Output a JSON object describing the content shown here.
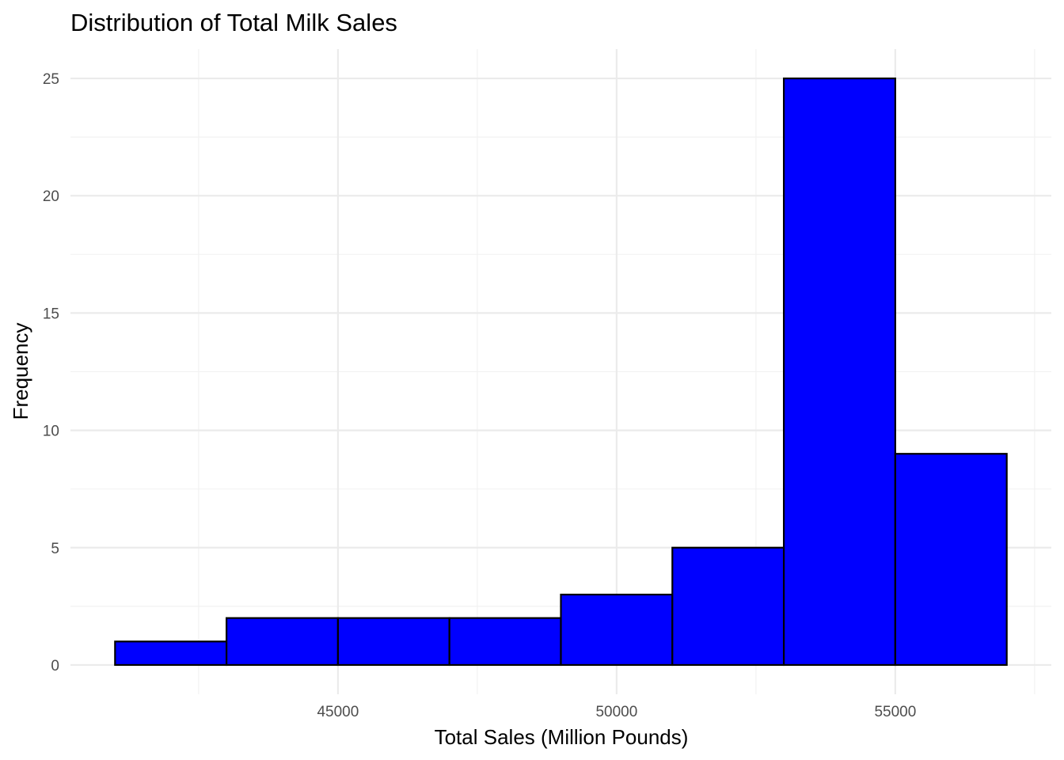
{
  "chart_data": {
    "type": "bar",
    "subtype": "histogram",
    "title": "Distribution of Total Milk Sales",
    "xlabel": "Total Sales (Million Pounds)",
    "ylabel": "Frequency",
    "bin_width": 2000,
    "bins": [
      {
        "x0": 41000,
        "x1": 43000,
        "count": 1
      },
      {
        "x0": 43000,
        "x1": 45000,
        "count": 2
      },
      {
        "x0": 45000,
        "x1": 47000,
        "count": 2
      },
      {
        "x0": 47000,
        "x1": 49000,
        "count": 2
      },
      {
        "x0": 49000,
        "x1": 51000,
        "count": 3
      },
      {
        "x0": 51000,
        "x1": 53000,
        "count": 5
      },
      {
        "x0": 53000,
        "x1": 55000,
        "count": 25
      },
      {
        "x0": 55000,
        "x1": 57000,
        "count": 9
      }
    ],
    "xlim": [
      40200,
      57800
    ],
    "ylim": [
      -1.25,
      26.25
    ],
    "x_major_ticks": [
      45000,
      50000,
      55000
    ],
    "x_tick_labels": [
      "45000",
      "50000",
      "55000"
    ],
    "x_minor_ticks": [
      42500,
      47500,
      52500,
      57500
    ],
    "y_major_ticks": [
      0,
      5,
      10,
      15,
      20,
      25
    ],
    "y_tick_labels": [
      "0",
      "5",
      "10",
      "15",
      "20",
      "25"
    ],
    "y_minor_ticks": [
      2.5,
      7.5,
      12.5,
      17.5,
      22.5
    ],
    "grid": true,
    "legend": "none",
    "bar_fill": "#0000ff",
    "bar_stroke": "#000000",
    "background": "#ffffff"
  }
}
